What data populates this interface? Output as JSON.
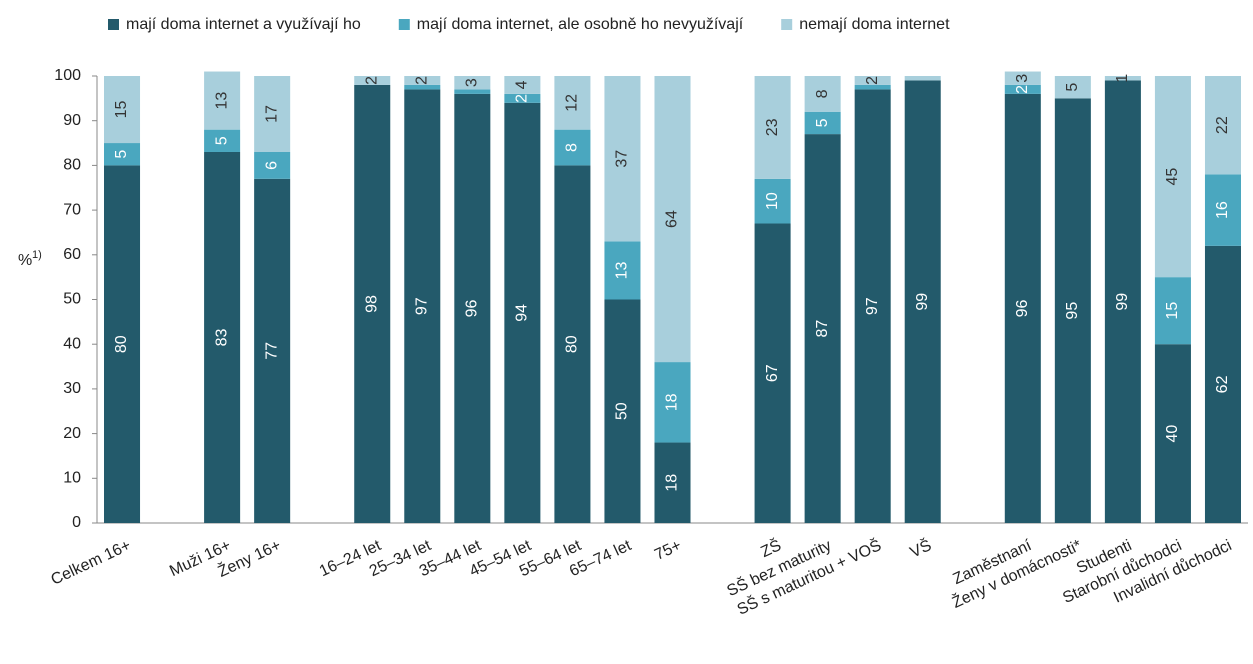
{
  "chart_data": {
    "type": "stacked_bar",
    "y_label": "%",
    "y_label_note": "1)",
    "categories": [
      "Celkem 16+",
      null,
      "Muži 16+",
      "Ženy 16+",
      null,
      "16–24 let",
      "25–34 let",
      "35–44 let",
      "45–54 let",
      "55–64 let",
      "65–74 let",
      "75+",
      null,
      "ZŠ",
      "SŠ bez maturity",
      "SŠ s maturitou + VOŠ",
      "VŠ",
      null,
      "Zaměstnaní",
      "Ženy v domácnosti*",
      "Studenti",
      "Starobní důchodci",
      "Invalidní důchodci"
    ],
    "series": [
      {
        "name": "mají doma internet a využívají ho",
        "color": "#235a6b",
        "values": [
          80,
          null,
          83,
          77,
          null,
          98,
          97,
          96,
          94,
          80,
          50,
          18,
          null,
          67,
          87,
          97,
          99,
          null,
          96,
          95,
          99,
          40,
          62
        ],
        "value_labels": [
          "80",
          null,
          "83",
          "77",
          null,
          "98",
          "97",
          "96",
          "94",
          "80",
          "50",
          "18",
          null,
          "67",
          "87",
          "97",
          "99",
          null,
          "96",
          "95",
          "99",
          "40",
          "62"
        ]
      },
      {
        "name": "mají doma internet, ale osobně ho nevyužívají",
        "color": "#4aa7bf",
        "values": [
          5,
          null,
          5,
          6,
          null,
          0,
          1,
          1,
          2,
          8,
          13,
          18,
          null,
          10,
          5,
          1,
          0,
          null,
          2,
          0,
          0,
          15,
          16
        ],
        "value_labels": [
          "5",
          null,
          "5",
          "6",
          null,
          null,
          null,
          null,
          "2",
          "8",
          "13",
          "18",
          null,
          "10",
          "5",
          null,
          null,
          null,
          "2",
          null,
          null,
          "15",
          "16"
        ]
      },
      {
        "name": "nemají doma internet",
        "color": "#a8cfdc",
        "values": [
          15,
          null,
          13,
          17,
          null,
          2,
          2,
          3,
          4,
          12,
          37,
          64,
          null,
          23,
          8,
          2,
          1,
          null,
          3,
          5,
          1,
          45,
          22
        ],
        "value_labels": [
          "15",
          null,
          "13",
          "17",
          null,
          "2",
          "2",
          "3",
          "4",
          "12",
          "37",
          "64",
          null,
          "23",
          "8",
          "2",
          null,
          null,
          "3",
          "5",
          "1",
          "45",
          "22"
        ]
      }
    ],
    "ylim": [
      0,
      100
    ],
    "yticks": [
      0,
      10,
      20,
      30,
      40,
      50,
      60,
      70,
      80,
      90,
      100
    ],
    "grid": false
  }
}
